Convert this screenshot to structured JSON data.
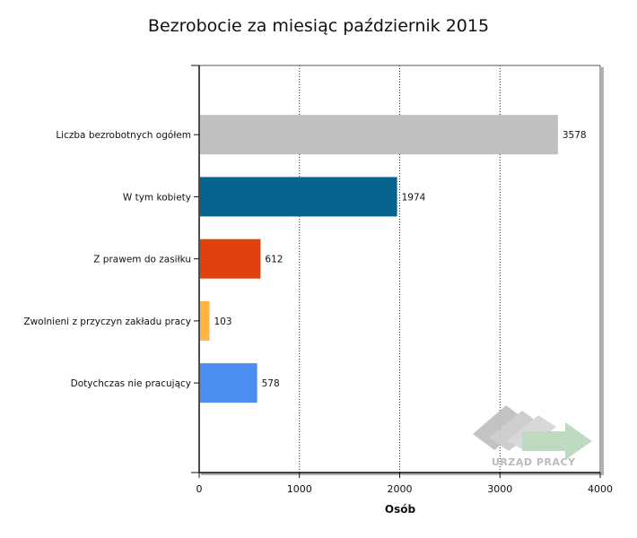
{
  "chart_data": {
    "type": "bar",
    "orientation": "horizontal",
    "title": "Bezrobocie za miesiąc październik 2015",
    "xlabel": "Osób",
    "ylabel": "",
    "xlim": [
      0,
      4000
    ],
    "x_ticks": [
      0,
      1000,
      2000,
      3000,
      4000
    ],
    "grid": "vertical dotted",
    "categories": [
      "Liczba bezrobotnych ogółem",
      "W tym kobiety",
      "Z prawem do zasiłku",
      "Zwolnieni z przyczyn zakładu pracy",
      "Dotychczas nie pracujący"
    ],
    "values": [
      3578,
      1974,
      612,
      103,
      578
    ],
    "colors": [
      "#c0c0c0",
      "#05628f",
      "#e04010",
      "#ffb444",
      "#4a8fef"
    ],
    "data_labels": [
      "3578",
      "1974",
      "612",
      "103",
      "578"
    ]
  },
  "watermark": {
    "text": "URZĄD PRACY"
  }
}
